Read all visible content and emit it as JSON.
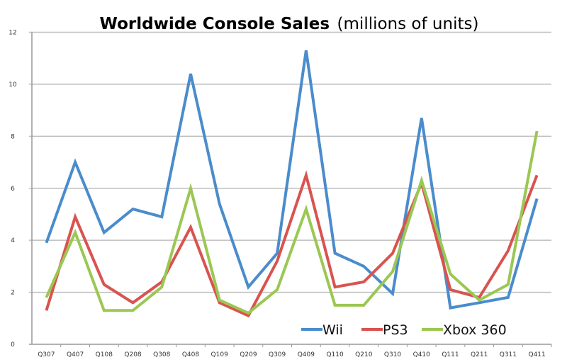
{
  "chart_data": {
    "type": "line",
    "title": "Worldwide Console Sales",
    "subtitle": "(millions of units)",
    "xlabel": "",
    "ylabel": "",
    "ylim": [
      0,
      12
    ],
    "yticks": [
      0,
      2,
      4,
      6,
      8,
      10,
      12
    ],
    "grid": true,
    "legend": "bottom-right",
    "categories": [
      "Q307",
      "Q407",
      "Q108",
      "Q208",
      "Q308",
      "Q408",
      "Q109",
      "Q209",
      "Q309",
      "Q409",
      "Q110",
      "Q210",
      "Q310",
      "Q410",
      "Q111",
      "Q211",
      "Q311",
      "Q411"
    ],
    "series": [
      {
        "name": "Wii",
        "color": "#4a8ccc",
        "values": [
          3.9,
          7.0,
          4.3,
          5.2,
          4.9,
          10.4,
          5.4,
          2.2,
          3.5,
          11.3,
          3.5,
          3.0,
          1.95,
          8.7,
          1.4,
          1.6,
          1.8,
          5.6
        ]
      },
      {
        "name": "PS3",
        "color": "#d9534f",
        "values": [
          1.3,
          4.9,
          2.3,
          1.6,
          2.4,
          4.5,
          1.6,
          1.1,
          3.2,
          6.5,
          2.2,
          2.4,
          3.5,
          6.2,
          2.1,
          1.8,
          3.6,
          6.5
        ]
      },
      {
        "name": "Xbox 360",
        "color": "#9bc753",
        "values": [
          1.8,
          4.3,
          1.3,
          1.3,
          2.2,
          6.0,
          1.7,
          1.2,
          2.1,
          5.2,
          1.5,
          1.5,
          2.8,
          6.3,
          2.7,
          1.7,
          2.3,
          8.2
        ]
      }
    ]
  }
}
